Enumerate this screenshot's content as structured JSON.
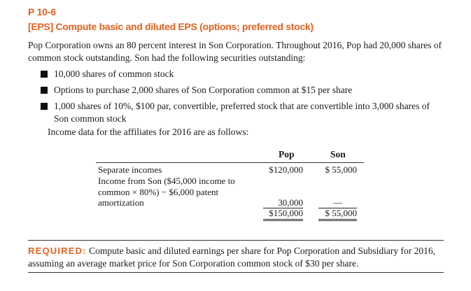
{
  "problem": {
    "number": "P 10-6",
    "title": "[EPS] Compute basic and diluted EPS (options; preferred stock)"
  },
  "intro_text": "Pop Corporation owns an 80 percent interest in Son Corporation. Throughout 2016, Pop had 20,000 shares of common stock outstanding. Son had the following securities outstanding:",
  "securities": [
    "10,000 shares of common stock",
    "Options to purchase 2,000 shares of Son Corporation common at $15 per share",
    "1,000 shares of 10%, $100 par, convertible, preferred stock that are convertible into 3,000 shares of Son common stock"
  ],
  "income_intro": "Income data for the affiliates for 2016 are as follows:",
  "income_table": {
    "headers": {
      "pop": "Pop",
      "son": "Son"
    },
    "rows": [
      {
        "label": "Separate incomes",
        "pop": "$120,000",
        "son": "$ 55,000"
      },
      {
        "label": "Income from Son ($45,000 income to common × 80%) − $6,000 patent amortization",
        "pop": "30,000",
        "son": "—"
      }
    ],
    "totals": {
      "pop": "$150,000",
      "son": "$ 55,000"
    }
  },
  "required": {
    "label": "REQUIRED:",
    "text": "Compute basic and diluted earnings per share for Pop Corporation and Subsidiary for 2016, assuming an average market price for Son Corporation common stock of $30 per share."
  },
  "colors": {
    "accent": "#e0621f",
    "text": "#1a1a1a"
  }
}
